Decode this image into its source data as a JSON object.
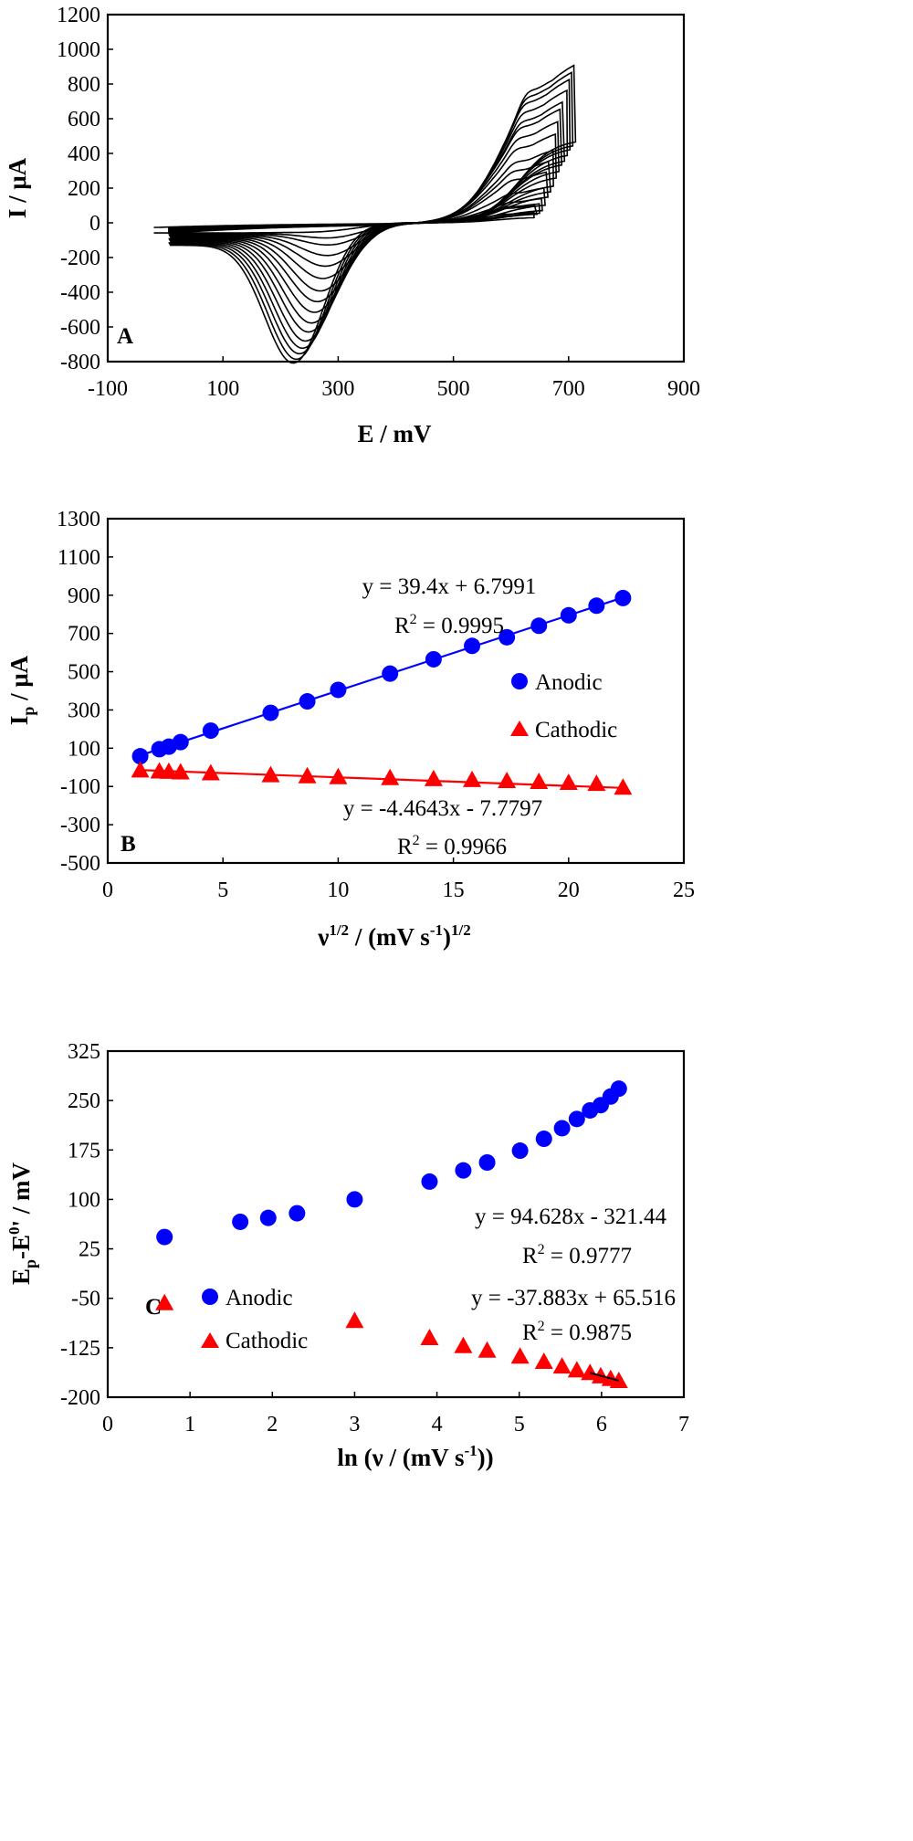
{
  "chart_data": [
    {
      "panel": "A",
      "type": "line",
      "ylabel": "I / μA",
      "xlabel": "E / mV",
      "xlim": [
        -100,
        900
      ],
      "ylim": [
        -800,
        1200
      ],
      "xticks": [
        "-100",
        "100",
        "300",
        "500",
        "700",
        "900"
      ],
      "yticks": [
        "-800",
        "-600",
        "-400",
        "-200",
        "0",
        "200",
        "400",
        "600",
        "800",
        "1000",
        "1200"
      ],
      "grid": false,
      "curve_count": 16,
      "curve_color": "#000000",
      "anodic_peak_uA": [
        60,
        100,
        110,
        140,
        200,
        290,
        350,
        410,
        500,
        570,
        640,
        680,
        740,
        800,
        840,
        880
      ],
      "cathodic_peak_uA": [
        -20,
        -60,
        -100,
        -160,
        -220,
        -290,
        -360,
        -420,
        -480,
        -540,
        -590,
        -640,
        -680,
        -710,
        -740,
        -760
      ]
    },
    {
      "panel": "B",
      "type": "scatter",
      "xlabel": "ν1/2 / (mV s-1)1/2",
      "xlabel_parts": {
        "nu": "ν",
        "sup1": "1/2",
        "mid": " / (mV s",
        "sup2": "-1",
        "close": ")",
        "sup3": "1/2"
      },
      "ylabel": "Ip / μA",
      "ylabel_parts": {
        "main": "I",
        "sub": "p",
        "rest": " / μA"
      },
      "xlim": [
        0,
        25
      ],
      "ylim": [
        -500,
        1300
      ],
      "xticks": [
        "0",
        "5",
        "10",
        "15",
        "20",
        "25"
      ],
      "yticks": [
        "-500",
        "-300",
        "-100",
        "100",
        "300",
        "500",
        "700",
        "900",
        "1100",
        "1300"
      ],
      "grid": false,
      "legend_position": "right",
      "legend": [
        "Anodic",
        "Cathodic"
      ],
      "x": [
        1.41,
        2.24,
        2.65,
        3.16,
        4.47,
        7.07,
        8.66,
        10.0,
        12.25,
        14.14,
        15.81,
        17.32,
        18.71,
        20.0,
        21.21,
        22.36
      ],
      "series": [
        {
          "name": "Anodic",
          "color": "#0000ff",
          "marker": "circle",
          "values": [
            58,
            95,
            108,
            132,
            192,
            285,
            345,
            405,
            490,
            565,
            635,
            680,
            740,
            795,
            845,
            885
          ],
          "fit": {
            "slope": 39.4,
            "intercept": 6.7991
          }
        },
        {
          "name": "Cathodic",
          "color": "#ff0000",
          "marker": "triangle",
          "values": [
            -15,
            -20,
            -22,
            -25,
            -30,
            -40,
            -45,
            -50,
            -55,
            -60,
            -65,
            -70,
            -75,
            -80,
            -85,
            -105
          ],
          "fit": {
            "slope": -4.4643,
            "intercept": -7.7797
          }
        }
      ],
      "annotations": {
        "anodic_eq": "y = 39.4x + 6.7991",
        "anodic_r2_lead": "R",
        "anodic_r2_sup": "2",
        "anodic_r2_tail": " = 0.9995",
        "cathodic_eq": "y = -4.4643x - 7.7797",
        "cathodic_r2_lead": "R",
        "cathodic_r2_sup": "2",
        "cathodic_r2_tail": " = 0.9966"
      }
    },
    {
      "panel": "C",
      "type": "scatter",
      "xlabel": "ln (ν / (mV s-1))",
      "xlabel_parts": {
        "lead": "ln (ν / (mV s",
        "sup": "-1",
        "close": "))"
      },
      "ylabel": "Ep-E0' / mV",
      "ylabel_parts": {
        "main": "E",
        "sub": "p",
        "mid": "-E",
        "sup": "0",
        "rest": "' / mV"
      },
      "xlim": [
        0,
        7
      ],
      "ylim": [
        -200,
        325
      ],
      "xticks": [
        "0",
        "1",
        "2",
        "3",
        "4",
        "5",
        "6",
        "7"
      ],
      "yticks": [
        "-200",
        "-125",
        "-50",
        "25",
        "100",
        "175",
        "250",
        "325"
      ],
      "grid": false,
      "legend_position": "bottom-left",
      "legend": [
        "Anodic",
        "Cathodic"
      ],
      "series": [
        {
          "name": "Anodic",
          "color": "#0000ff",
          "marker": "circle",
          "x": [
            0.69,
            1.61,
            1.95,
            2.3,
            3.0,
            3.91,
            4.32,
            4.61,
            5.01,
            5.3,
            5.52,
            5.7,
            5.86,
            5.99,
            6.11,
            6.21
          ],
          "values": [
            43,
            66,
            72,
            79,
            100,
            127,
            144,
            156,
            174,
            192,
            208,
            222,
            235,
            243,
            256,
            268
          ]
        },
        {
          "name": "Cathodic",
          "color": "#ff0000",
          "marker": "triangle",
          "x": [
            0.69,
            3.0,
            3.91,
            4.32,
            4.61,
            5.01,
            5.3,
            5.52,
            5.7,
            5.86,
            5.99,
            6.11,
            6.21
          ],
          "values": [
            -57,
            -84,
            -110,
            -122,
            -129,
            -138,
            -146,
            -153,
            -159,
            -163,
            -168,
            -172,
            -175
          ]
        }
      ],
      "annotations": {
        "anodic_eq": "y = 94.628x - 321.44",
        "anodic_r2_lead": "R",
        "anodic_r2_sup": "2",
        "anodic_r2_tail": " = 0.9777",
        "cathodic_eq": "y = -37.883x + 65.516",
        "cathodic_r2_lead": "R",
        "cathodic_r2_sup": "2",
        "cathodic_r2_tail": " = 0.9875"
      }
    }
  ]
}
